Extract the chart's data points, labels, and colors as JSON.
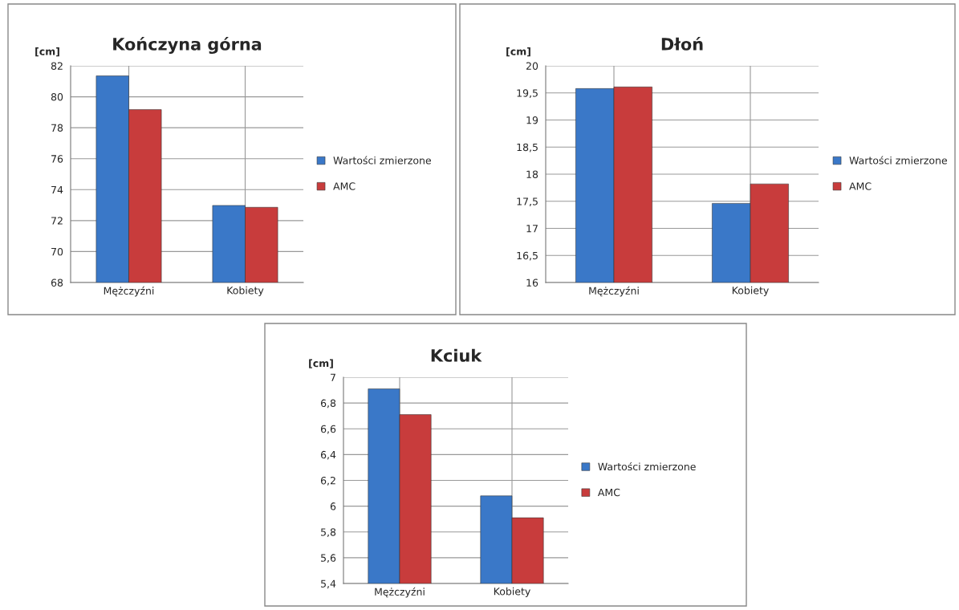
{
  "chart_data": [
    {
      "type": "bar",
      "title": "Kończyna górna",
      "ylabel": "[cm]",
      "categories": [
        "Mężczyźni",
        "Kobiety"
      ],
      "series": [
        {
          "name": "Wartości zmierzone",
          "color": "#3a78c8",
          "values": [
            81.35,
            72.98
          ]
        },
        {
          "name": "AMC",
          "color": "#c83c3c",
          "values": [
            79.17,
            72.86
          ]
        }
      ],
      "ylim": [
        68,
        82
      ],
      "yticks": [
        68,
        70,
        72,
        74,
        76,
        78,
        80,
        82
      ],
      "grid": true,
      "legend": "right"
    },
    {
      "type": "bar",
      "title": "Dłoń",
      "ylabel": "[cm]",
      "categories": [
        "Mężczyźni",
        "Kobiety"
      ],
      "series": [
        {
          "name": "Wartości zmierzone",
          "color": "#3a78c8",
          "values": [
            19.58,
            17.46
          ]
        },
        {
          "name": "AMC",
          "color": "#c83c3c",
          "values": [
            19.61,
            17.82
          ]
        }
      ],
      "ylim": [
        16,
        20
      ],
      "yticks": [
        16,
        {
          "value": 16.5,
          "label": "16,5"
        },
        17,
        {
          "value": 17.5,
          "label": "17,5"
        },
        18,
        {
          "value": 18.5,
          "label": "18,5"
        },
        19,
        {
          "value": 19.5,
          "label": "19,5"
        },
        20
      ],
      "grid": true,
      "legend": "right"
    },
    {
      "type": "bar",
      "title": "Kciuk",
      "ylabel": "[cm]",
      "categories": [
        "Mężczyźni",
        "Kobiety"
      ],
      "series": [
        {
          "name": "Wartości zmierzone",
          "color": "#3a78c8",
          "values": [
            6.91,
            6.08
          ]
        },
        {
          "name": "AMC",
          "color": "#c83c3c",
          "values": [
            6.71,
            5.91
          ]
        }
      ],
      "ylim": [
        5.4,
        7
      ],
      "yticks": [
        {
          "value": 5.4,
          "label": "5,4"
        },
        {
          "value": 5.6,
          "label": "5,6"
        },
        {
          "value": 5.8,
          "label": "5,8"
        },
        6,
        {
          "value": 6.2,
          "label": "6,2"
        },
        {
          "value": 6.4,
          "label": "6,4"
        },
        {
          "value": 6.6,
          "label": "6,6"
        },
        {
          "value": 6.8,
          "label": "6,8"
        },
        7
      ],
      "grid": true,
      "legend": "right"
    }
  ]
}
